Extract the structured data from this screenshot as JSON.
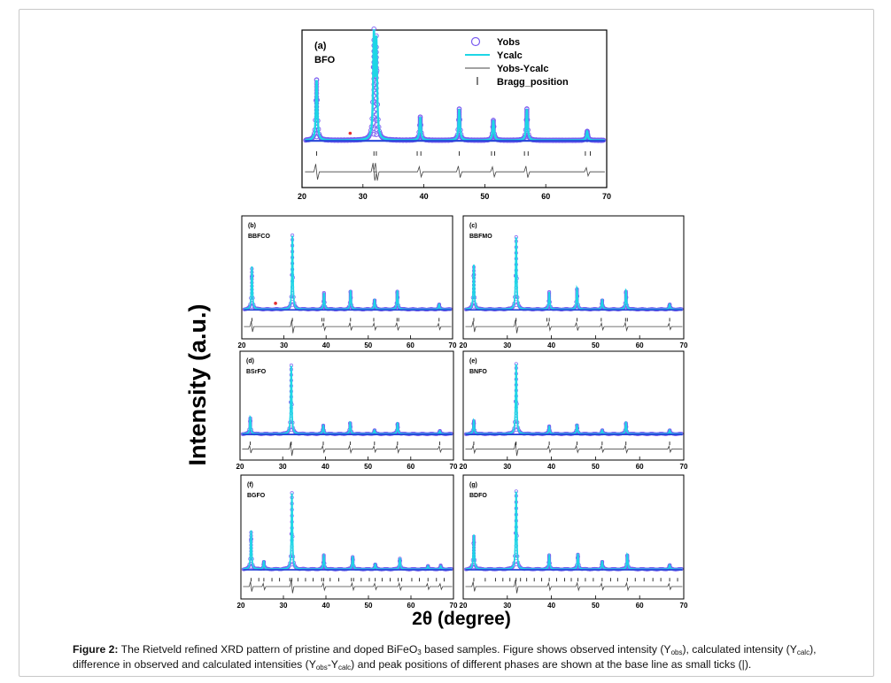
{
  "figure": {
    "ylabel": "Intensity (a.u.)",
    "xlabel": "2θ (degree)"
  },
  "caption": {
    "label": "Figure 2:",
    "t1": " The Rietveld refined XRD pattern of pristine and doped BiFeO",
    "sub1": "3",
    "t2": " based samples. Figure shows observed intensity (Y",
    "sub2": "obs",
    "t3": "), calculated intensity (Y",
    "sub3": "calc",
    "t4": "), difference in observed and calculated intensities (Y",
    "sub4": "obs",
    "t5": "-Y",
    "sub5": "calc",
    "t6": ") and peak positions of different phases are shown at the base line as small ticks (|)."
  },
  "colors": {
    "yobs": "#7a5cf0",
    "ycalc": "#1ed6e6",
    "baseline": "#2747d8",
    "diff": "#444444",
    "impurity": "#e53030"
  },
  "chart_data": [
    {
      "type": "line",
      "panel_label": "(a)",
      "sample": "BFO",
      "xlim": [
        20,
        70
      ],
      "xticks": [
        20,
        30,
        40,
        50,
        60,
        70
      ],
      "legend": [
        "Yobs",
        "Ycalc",
        "Yobs-Ycalc",
        "Bragg_position"
      ],
      "legend_position": "top-right",
      "peaks": [
        {
          "x": 22.4,
          "h": 0.6
        },
        {
          "x": 31.8,
          "h": 1.0
        },
        {
          "x": 32.2,
          "h": 0.93
        },
        {
          "x": 39.4,
          "h": 0.23
        },
        {
          "x": 45.8,
          "h": 0.31
        },
        {
          "x": 51.4,
          "h": 0.2
        },
        {
          "x": 56.9,
          "h": 0.31
        },
        {
          "x": 66.8,
          "h": 0.09
        }
      ],
      "impurity_x": [
        27.9
      ],
      "bragg_ticks": [
        22.4,
        31.8,
        32.2,
        38.9,
        39.5,
        45.8,
        51.1,
        51.6,
        56.5,
        57.1,
        66.5,
        67.3
      ]
    },
    {
      "type": "line",
      "panel_label": "(b)",
      "sample": "BBFCO",
      "xlim": [
        20,
        70
      ],
      "xticks": [
        20,
        30,
        40,
        50,
        60,
        70
      ],
      "peaks": [
        {
          "x": 22.4,
          "h": 0.5
        },
        {
          "x": 32.0,
          "h": 0.86
        },
        {
          "x": 39.5,
          "h": 0.19
        },
        {
          "x": 45.8,
          "h": 0.22
        },
        {
          "x": 51.5,
          "h": 0.11
        },
        {
          "x": 56.9,
          "h": 0.22
        },
        {
          "x": 66.8,
          "h": 0.06
        }
      ],
      "impurity_x": [
        28.0
      ],
      "bragg_ticks": [
        22.4,
        32.0,
        39.0,
        39.5,
        45.8,
        51.3,
        56.8,
        57.2,
        66.8
      ]
    },
    {
      "type": "line",
      "panel_label": "(c)",
      "sample": "BBFMO",
      "xlim": [
        20,
        70
      ],
      "xticks": [
        20,
        30,
        40,
        50,
        60,
        70
      ],
      "peaks": [
        {
          "x": 22.4,
          "h": 0.52
        },
        {
          "x": 32.0,
          "h": 0.84
        },
        {
          "x": 39.5,
          "h": 0.2
        },
        {
          "x": 45.8,
          "h": 0.25
        },
        {
          "x": 51.5,
          "h": 0.11
        },
        {
          "x": 56.9,
          "h": 0.22
        },
        {
          "x": 66.8,
          "h": 0.06
        }
      ],
      "impurity_x": [],
      "bragg_ticks": [
        22.4,
        32.0,
        39.0,
        39.5,
        45.8,
        51.3,
        56.8,
        57.2,
        66.8
      ]
    },
    {
      "type": "line",
      "panel_label": "(d)",
      "sample": "BSrFO",
      "xlim": [
        20,
        70
      ],
      "xticks": [
        20,
        30,
        40,
        50,
        60,
        70
      ],
      "peaks": [
        {
          "x": 22.4,
          "h": 0.22
        },
        {
          "x": 32.0,
          "h": 0.9
        },
        {
          "x": 39.5,
          "h": 0.11
        },
        {
          "x": 45.8,
          "h": 0.15
        },
        {
          "x": 51.5,
          "h": 0.05
        },
        {
          "x": 56.9,
          "h": 0.14
        },
        {
          "x": 66.8,
          "h": 0.04
        }
      ],
      "impurity_x": [],
      "bragg_ticks": [
        22.4,
        32.0,
        39.5,
        45.8,
        51.5,
        56.9,
        66.8
      ]
    },
    {
      "type": "line",
      "panel_label": "(e)",
      "sample": "BNFO",
      "xlim": [
        20,
        70
      ],
      "xticks": [
        20,
        30,
        40,
        50,
        60,
        70
      ],
      "peaks": [
        {
          "x": 22.4,
          "h": 0.18
        },
        {
          "x": 32.0,
          "h": 0.92
        },
        {
          "x": 39.5,
          "h": 0.1
        },
        {
          "x": 45.8,
          "h": 0.12
        },
        {
          "x": 51.5,
          "h": 0.05
        },
        {
          "x": 56.9,
          "h": 0.15
        },
        {
          "x": 66.8,
          "h": 0.05
        }
      ],
      "impurity_x": [],
      "bragg_ticks": [
        22.4,
        32.0,
        39.5,
        45.8,
        51.5,
        56.9,
        66.8
      ]
    },
    {
      "type": "line",
      "panel_label": "(f)",
      "sample": "BGFO",
      "xlim": [
        20,
        70
      ],
      "xticks": [
        20,
        30,
        40,
        50,
        60,
        70
      ],
      "peaks": [
        {
          "x": 22.4,
          "h": 0.45
        },
        {
          "x": 25.4,
          "h": 0.09
        },
        {
          "x": 32.0,
          "h": 0.88
        },
        {
          "x": 39.5,
          "h": 0.16
        },
        {
          "x": 46.3,
          "h": 0.15
        },
        {
          "x": 51.6,
          "h": 0.06
        },
        {
          "x": 57.4,
          "h": 0.13
        },
        {
          "x": 64.0,
          "h": 0.04
        },
        {
          "x": 67.0,
          "h": 0.04
        }
      ],
      "impurity_x": [],
      "bragg_ticks": [
        22.4,
        24.2,
        25.4,
        27.3,
        29.1,
        31.5,
        32.0,
        33.4,
        35.2,
        37.0,
        39.0,
        39.5,
        41.0,
        43.0,
        46.0,
        46.5,
        48.3,
        50.2,
        51.6,
        53.2,
        55.1,
        57.0,
        57.8,
        60.2,
        62.0,
        64.0,
        66.0,
        67.8
      ]
    },
    {
      "type": "line",
      "panel_label": "(g)",
      "sample": "BDFO",
      "xlim": [
        20,
        70
      ],
      "xticks": [
        20,
        30,
        40,
        50,
        60,
        70
      ],
      "peaks": [
        {
          "x": 22.4,
          "h": 0.4
        },
        {
          "x": 32.0,
          "h": 0.9
        },
        {
          "x": 39.5,
          "h": 0.16
        },
        {
          "x": 46.0,
          "h": 0.18
        },
        {
          "x": 51.5,
          "h": 0.09
        },
        {
          "x": 57.2,
          "h": 0.17
        },
        {
          "x": 66.8,
          "h": 0.05
        }
      ],
      "impurity_x": [],
      "bragg_ticks": [
        22.4,
        25.0,
        27.3,
        29.0,
        30.6,
        32.0,
        33.0,
        34.4,
        36.1,
        37.8,
        39.5,
        41.2,
        43.0,
        44.5,
        46.0,
        47.7,
        49.5,
        51.5,
        53.4,
        55.0,
        57.2,
        59.0,
        61.0,
        63.0,
        64.8,
        66.8,
        68.6
      ]
    }
  ]
}
